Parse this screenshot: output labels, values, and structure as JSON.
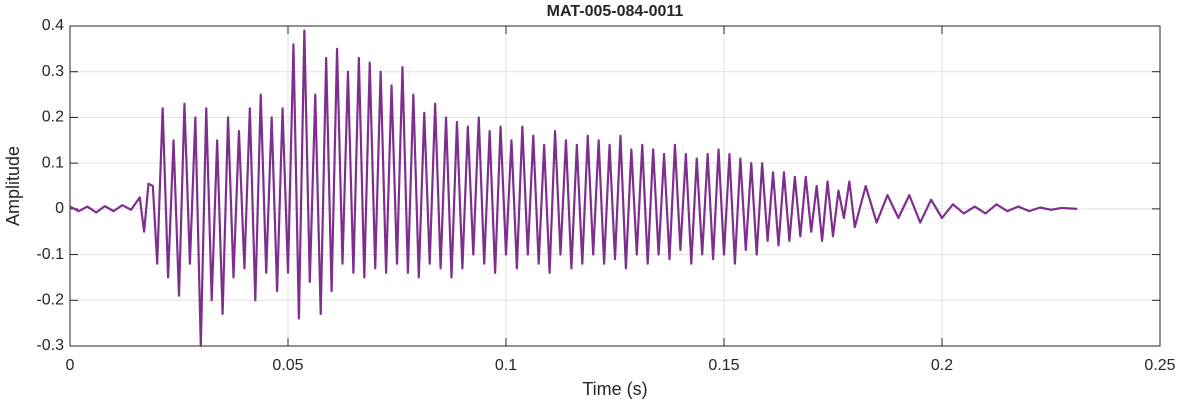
{
  "chart_data": {
    "type": "line",
    "title": "MAT-005-084-0011",
    "x_label": "Time (s)",
    "y_label": "Amplitude",
    "color": "#7e2f8e",
    "grid": true,
    "xlim": [
      0,
      0.25
    ],
    "xticks": [
      0,
      0.05,
      0.1,
      0.15,
      0.2,
      0.25
    ],
    "ylim": [
      -0.3,
      0.4
    ],
    "yticks": [
      -0.3,
      -0.2,
      -0.1,
      0,
      0.1,
      0.2,
      0.3,
      0.4
    ],
    "x": [
      0,
      0.002,
      0.004,
      0.006,
      0.008,
      0.01,
      0.012,
      0.014,
      0.016,
      0.017,
      0.018,
      0.019,
      0.02,
      0.02125,
      0.0225,
      0.02375,
      0.025,
      0.02625,
      0.0275,
      0.02875,
      0.03,
      0.03125,
      0.0325,
      0.03375,
      0.035,
      0.03625,
      0.0375,
      0.03875,
      0.04,
      0.04125,
      0.0425,
      0.04375,
      0.045,
      0.04625,
      0.0475,
      0.04875,
      0.05,
      0.05125,
      0.0525,
      0.05375,
      0.055,
      0.05625,
      0.0575,
      0.05875,
      0.06,
      0.06125,
      0.0625,
      0.06375,
      0.065,
      0.06625,
      0.0675,
      0.06875,
      0.07,
      0.07125,
      0.0725,
      0.07375,
      0.075,
      0.07625,
      0.0775,
      0.07875,
      0.08,
      0.08125,
      0.0825,
      0.08375,
      0.085,
      0.08625,
      0.0875,
      0.08875,
      0.09,
      0.09125,
      0.0925,
      0.09375,
      0.095,
      0.09625,
      0.0975,
      0.09875,
      0.1,
      0.10125,
      0.1025,
      0.10375,
      0.105,
      0.10625,
      0.1075,
      0.10875,
      0.11,
      0.11125,
      0.1125,
      0.11375,
      0.115,
      0.11625,
      0.1175,
      0.11875,
      0.12,
      0.12125,
      0.1225,
      0.12375,
      0.125,
      0.12625,
      0.1275,
      0.12875,
      0.13,
      0.13125,
      0.1325,
      0.13375,
      0.135,
      0.13625,
      0.1375,
      0.13875,
      0.14,
      0.14125,
      0.1425,
      0.14375,
      0.145,
      0.14625,
      0.1475,
      0.14875,
      0.15,
      0.15125,
      0.1525,
      0.15375,
      0.155,
      0.15625,
      0.1575,
      0.15875,
      0.16,
      0.16125,
      0.1625,
      0.16375,
      0.165,
      0.16625,
      0.1675,
      0.16875,
      0.17,
      0.17125,
      0.1725,
      0.17375,
      0.175,
      0.17625,
      0.1775,
      0.17875,
      0.18,
      0.1825,
      0.185,
      0.1875,
      0.19,
      0.1925,
      0.195,
      0.1975,
      0.2,
      0.2025,
      0.205,
      0.2075,
      0.21,
      0.2125,
      0.215,
      0.2175,
      0.22,
      0.2225,
      0.225,
      0.2275,
      0.231
    ],
    "values": [
      0.005,
      -0.005,
      0.005,
      -0.008,
      0.006,
      -0.005,
      0.008,
      -0.002,
      0.025,
      -0.05,
      0.055,
      0.05,
      -0.12,
      0.22,
      -0.15,
      0.15,
      -0.19,
      0.23,
      -0.12,
      0.2,
      -0.3,
      0.22,
      -0.2,
      0.15,
      -0.23,
      0.2,
      -0.15,
      0.17,
      -0.13,
      0.22,
      -0.2,
      0.25,
      -0.14,
      0.2,
      -0.18,
      0.22,
      -0.14,
      0.36,
      -0.24,
      0.39,
      -0.16,
      0.25,
      -0.23,
      0.33,
      -0.18,
      0.35,
      -0.12,
      0.3,
      -0.14,
      0.33,
      -0.15,
      0.32,
      -0.13,
      0.3,
      -0.14,
      0.27,
      -0.12,
      0.31,
      -0.14,
      0.25,
      -0.15,
      0.21,
      -0.12,
      0.23,
      -0.13,
      0.2,
      -0.15,
      0.19,
      -0.13,
      0.18,
      -0.1,
      0.2,
      -0.12,
      0.17,
      -0.14,
      0.18,
      -0.1,
      0.15,
      -0.13,
      0.18,
      -0.1,
      0.16,
      -0.12,
      0.14,
      -0.14,
      0.17,
      -0.1,
      0.15,
      -0.13,
      0.14,
      -0.12,
      0.16,
      -0.1,
      0.15,
      -0.12,
      0.14,
      -0.11,
      0.16,
      -0.13,
      0.13,
      -0.1,
      0.14,
      -0.12,
      0.13,
      -0.1,
      0.12,
      -0.11,
      0.14,
      -0.09,
      0.12,
      -0.12,
      0.11,
      -0.1,
      0.12,
      -0.11,
      0.13,
      -0.1,
      0.12,
      -0.12,
      0.11,
      -0.09,
      0.1,
      -0.1,
      0.1,
      -0.07,
      0.08,
      -0.08,
      0.08,
      -0.07,
      0.07,
      -0.06,
      0.07,
      -0.05,
      0.05,
      -0.07,
      0.06,
      -0.06,
      0.04,
      -0.02,
      0.06,
      -0.04,
      0.05,
      -0.03,
      0.03,
      -0.02,
      0.03,
      -0.03,
      0.02,
      -0.02,
      0.01,
      -0.01,
      0.005,
      -0.01,
      0.01,
      -0.005,
      0.005,
      -0.005,
      0.003,
      -0.002,
      0.002,
      0
    ]
  }
}
